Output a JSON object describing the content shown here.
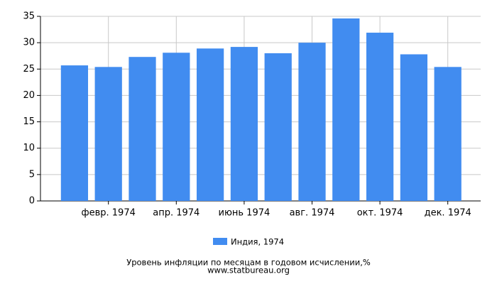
{
  "chart_data": {
    "type": "bar",
    "title": "Уровень инфляции по месяцам в годовом исчислении,%",
    "subtitle": "www.statbureau.org",
    "categories": [
      null,
      "февр. 1974",
      null,
      "апр. 1974",
      null,
      "июнь 1974",
      null,
      "авг. 1974",
      null,
      "окт. 1974",
      null,
      "дек. 1974"
    ],
    "series": [
      {
        "name": "Индия, 1974",
        "color": "#418cf0",
        "values": [
          25.7,
          25.4,
          27.3,
          28.1,
          28.9,
          29.2,
          28.0,
          30.0,
          34.6,
          31.9,
          27.8,
          25.4
        ]
      }
    ],
    "ylim": [
      0,
      35
    ],
    "yticks": [
      0,
      5,
      10,
      15,
      20,
      25,
      30,
      35
    ],
    "grid": true
  }
}
